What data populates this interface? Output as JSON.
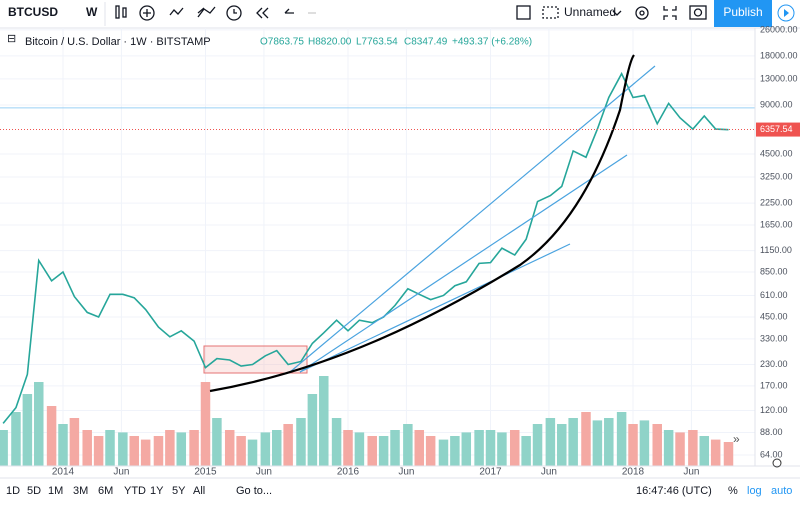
{
  "toolbar": {
    "symbol": "BTCUSD",
    "interval": "W",
    "layout": "Unnamed",
    "publish": "Publish"
  },
  "legend": {
    "title": "Bitcoin / U.S. Dollar · 1W · BITSTAMP",
    "open": "O7863.75",
    "high": "H8820.00",
    "low": "L7763.54",
    "close": "C8347.49",
    "change": "+493.37 (+6.28%)"
  },
  "bottom": {
    "ranges": [
      "1D",
      "5D",
      "1M",
      "3M",
      "6M",
      "YTD",
      "1Y",
      "5Y",
      "All"
    ],
    "goto": "Go to...",
    "time": "16:47:46 (UTC)",
    "percent": "%",
    "log": "log",
    "auto": "auto"
  },
  "chart_data": {
    "type": "line",
    "log_scale": true,
    "x": [
      2013.58,
      2013.67,
      2013.75,
      2013.83,
      2013.92,
      2014.0,
      2014.08,
      2014.17,
      2014.25,
      2014.33,
      2014.42,
      2014.5,
      2014.58,
      2014.67,
      2014.75,
      2014.83,
      2014.92,
      2015.0,
      2015.08,
      2015.17,
      2015.25,
      2015.33,
      2015.42,
      2015.5,
      2015.58,
      2015.67,
      2015.75,
      2015.83,
      2015.92,
      2016.0,
      2016.08,
      2016.17,
      2016.25,
      2016.33,
      2016.42,
      2016.5,
      2016.58,
      2016.67,
      2016.75,
      2016.83,
      2016.92,
      2017.0,
      2017.08,
      2017.17,
      2017.25,
      2017.33,
      2017.42,
      2017.5,
      2017.58,
      2017.67,
      2017.75,
      2017.83,
      2017.92,
      2018.0,
      2018.08,
      2018.17,
      2018.25,
      2018.33,
      2018.42,
      2018.5,
      2018.58,
      2018.67
    ],
    "series": [
      {
        "name": "BTCUSD",
        "color": "#26a69a",
        "values": [
          100,
          125,
          200,
          1000,
          750,
          850,
          600,
          480,
          450,
          620,
          620,
          590,
          500,
          390,
          340,
          370,
          320,
          220,
          250,
          245,
          225,
          230,
          260,
          280,
          230,
          240,
          310,
          360,
          430,
          370,
          430,
          415,
          450,
          530,
          670,
          620,
          575,
          610,
          700,
          740,
          960,
          970,
          1190,
          1080,
          1350,
          2300,
          2500,
          2850,
          4700,
          4300,
          6400,
          10000,
          14000,
          10000,
          10300,
          6900,
          9200,
          7500,
          6400,
          7700,
          6400,
          6350
        ],
        "volume": [
          30,
          45,
          60,
          70,
          50,
          35,
          40,
          30,
          25,
          30,
          28,
          25,
          22,
          25,
          30,
          28,
          30,
          70,
          40,
          30,
          25,
          22,
          28,
          30,
          35,
          40,
          60,
          75,
          40,
          30,
          28,
          25,
          25,
          30,
          35,
          30,
          25,
          22,
          25,
          28,
          30,
          30,
          28,
          30,
          25,
          35,
          40,
          35,
          40,
          45,
          38,
          40,
          45,
          35,
          38,
          35,
          30,
          28,
          30,
          25,
          22,
          20
        ]
      }
    ],
    "up_color": "#8fd3c8",
    "down_color": "#f4a9a3",
    "xlim": [
      2013.558,
      2018.856
    ],
    "xticks": [
      2014,
      {
        "value": 2014.41,
        "label": "Jun"
      },
      2015,
      {
        "value": 2015.41,
        "label": "Jun"
      },
      2016,
      {
        "value": 2016.41,
        "label": "Jun"
      },
      2017,
      {
        "value": 2017.41,
        "label": "Jun"
      },
      2018,
      {
        "value": 2018.41,
        "label": "Jun"
      }
    ],
    "ylim": [
      54.8,
      26700
    ],
    "yticks": [
      {
        "value": 26000,
        "label": "26000.00"
      },
      {
        "value": 18000,
        "label": "18000.00"
      },
      {
        "value": 13000,
        "label": "13000.00"
      },
      {
        "value": 9000,
        "label": "9000.00"
      },
      {
        "value": 4500,
        "label": "4500.00"
      },
      {
        "value": 3250,
        "label": "3250.00"
      },
      {
        "value": 2250,
        "label": "2250.00"
      },
      {
        "value": 1650,
        "label": "1650.00"
      },
      {
        "value": 1150,
        "label": "1150.00"
      },
      {
        "value": 850,
        "label": "850.00"
      },
      {
        "value": 610,
        "label": "610.00"
      },
      {
        "value": 450,
        "label": "450.00"
      },
      {
        "value": 330,
        "label": "330.00"
      },
      {
        "value": 230,
        "label": "230.00"
      },
      {
        "value": 170,
        "label": "170.00"
      },
      {
        "value": 120,
        "label": "120.00"
      },
      {
        "value": 88,
        "label": "88.00"
      },
      {
        "value": 64,
        "label": "64.00"
      }
    ],
    "last_price": 6357.54,
    "last_color": "#ef5350",
    "hline": 8630
  }
}
